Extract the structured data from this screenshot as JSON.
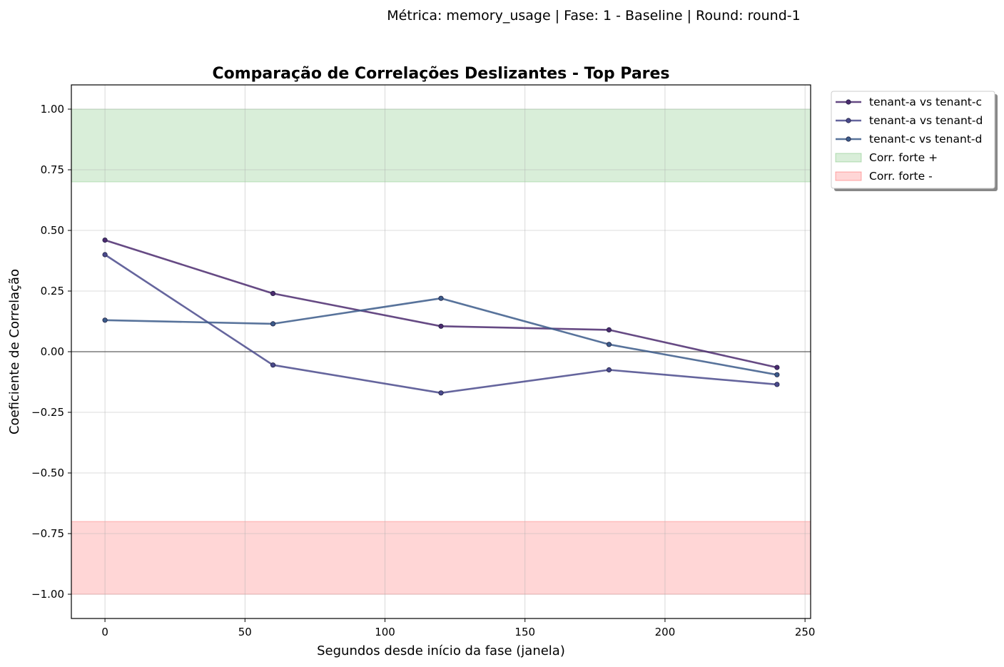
{
  "chart_data": {
    "type": "line",
    "suptitle": "Métrica: memory_usage | Fase: 1 - Baseline | Round: round-1",
    "title": "Comparação de Correlações Deslizantes - Top Pares",
    "xlabel": "Segundos desde início da fase (janela)",
    "ylabel": "Coeficiente de Correlação",
    "xlim": [
      -12,
      252
    ],
    "ylim": [
      -1.1,
      1.1
    ],
    "xticks": [
      0,
      50,
      100,
      150,
      200,
      250
    ],
    "xtick_labels": [
      "0",
      "50",
      "100",
      "150",
      "200",
      "250"
    ],
    "yticks": [
      1.0,
      0.75,
      0.5,
      0.25,
      0.0,
      -0.25,
      -0.5,
      -0.75,
      -1.0
    ],
    "ytick_labels": [
      "1.00",
      "0.75",
      "0.50",
      "0.25",
      "0.00",
      "−0.25",
      "−0.50",
      "−0.75",
      "−1.00"
    ],
    "grid": true,
    "legend_position": "outside-top-right",
    "x": [
      0,
      60,
      120,
      180,
      240
    ],
    "series": [
      {
        "name": "tenant-a vs tenant-c",
        "color": "#4b2a6e",
        "values": [
          0.46,
          0.24,
          0.105,
          0.09,
          -0.065
        ]
      },
      {
        "name": "tenant-a vs tenant-d",
        "color": "#4a4a8c",
        "values": [
          0.4,
          -0.055,
          -0.17,
          -0.075,
          -0.135
        ]
      },
      {
        "name": "tenant-c vs tenant-d",
        "color": "#3b5b8a",
        "values": [
          0.13,
          0.115,
          0.22,
          0.03,
          -0.095
        ]
      }
    ],
    "bands": [
      {
        "name": "Corr. forte +",
        "range": [
          0.7,
          1.0
        ],
        "color": "#2ca02c"
      },
      {
        "name": "Corr. forte -",
        "range": [
          -1.0,
          -0.7
        ],
        "color": "#ff0000"
      }
    ],
    "reference_line": 0.0
  }
}
